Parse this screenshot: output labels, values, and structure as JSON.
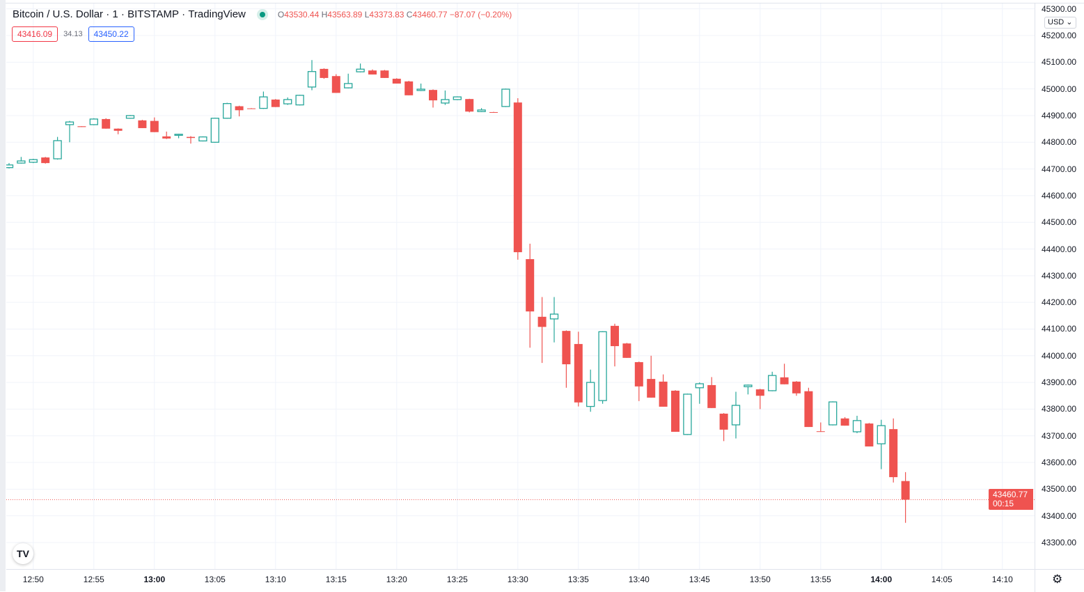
{
  "legend": {
    "symbol": "Bitcoin / U.S. Dollar",
    "interval": "1",
    "exchange": "BITSTAMP",
    "source": "TradingView",
    "o_label": "O",
    "o": "43530.44",
    "h_label": "H",
    "h": "43563.89",
    "l_label": "L",
    "l": "43373.83",
    "c_label": "C",
    "c": "43460.77",
    "change": "−87.07 (−0.20%)"
  },
  "quote": {
    "bid": "43416.09",
    "spread": "34.13",
    "ask": "43450.22"
  },
  "currency": "USD",
  "last_price": {
    "value": "43460.77",
    "countdown": "00:15"
  },
  "colors": {
    "up": "#26a69a",
    "down": "#ef5350",
    "bid": "#f23645",
    "ask": "#2962ff"
  },
  "chart_data": {
    "type": "candlestick",
    "title": "Bitcoin / U.S. Dollar · 1 · BITSTAMP",
    "ylim": [
      43250,
      45300
    ],
    "y_ticks": [
      "45300.00",
      "45200.00",
      "45100.00",
      "45000.00",
      "44900.00",
      "44800.00",
      "44700.00",
      "44600.00",
      "44500.00",
      "44400.00",
      "44300.00",
      "44200.00",
      "44100.00",
      "44000.00",
      "43900.00",
      "43800.00",
      "43700.00",
      "43600.00",
      "43500.00",
      "43400.00",
      "43300.00"
    ],
    "x_ticks": [
      "12:50",
      "12:55",
      "13:00",
      "13:05",
      "13:10",
      "13:15",
      "13:20",
      "13:25",
      "13:30",
      "13:35",
      "13:40",
      "13:45",
      "13:50",
      "13:55",
      "14:00",
      "14:05",
      "14:10"
    ],
    "x_ticks_bold": [
      "13:00",
      "14:00"
    ],
    "grid": true,
    "columns": [
      "time",
      "open",
      "high",
      "low",
      "close"
    ],
    "candles": [
      [
        "12:48",
        44705,
        44722,
        44702,
        44715
      ],
      [
        "12:49",
        44722,
        44745,
        44720,
        44730
      ],
      [
        "12:50",
        44725,
        44738,
        44722,
        44735
      ],
      [
        "12:51",
        44743,
        44745,
        44720,
        44722
      ],
      [
        "12:52",
        44738,
        44820,
        44735,
        44806
      ],
      [
        "12:53",
        44866,
        44880,
        44800,
        44876
      ],
      [
        "12:54",
        44860,
        44860,
        44857,
        44857
      ],
      [
        "12:55",
        44866,
        44890,
        44864,
        44887
      ],
      [
        "12:56",
        44887,
        44890,
        44851,
        44851
      ],
      [
        "12:57",
        44851,
        44852,
        44830,
        44843
      ],
      [
        "12:58",
        44890,
        44902,
        44888,
        44900
      ],
      [
        "12:59",
        44882,
        44884,
        44853,
        44853
      ],
      [
        "13:00",
        44880,
        44893,
        44838,
        44838
      ],
      [
        "13:01",
        44822,
        44840,
        44812,
        44814
      ],
      [
        "13:02",
        44826,
        44832,
        44815,
        44830
      ],
      [
        "13:03",
        44820,
        44823,
        44795,
        44816
      ],
      [
        "13:04",
        44805,
        44822,
        44803,
        44820
      ],
      [
        "13:05",
        44800,
        44892,
        44798,
        44890
      ],
      [
        "13:06",
        44890,
        44948,
        44888,
        44945
      ],
      [
        "13:07",
        44935,
        44937,
        44897,
        44920
      ],
      [
        "13:08",
        44927,
        44928,
        44925,
        44926
      ],
      [
        "13:09",
        44927,
        44990,
        44925,
        44970
      ],
      [
        "13:10",
        44960,
        44962,
        44932,
        44932
      ],
      [
        "13:11",
        44944,
        44968,
        44940,
        44960
      ],
      [
        "13:12",
        44940,
        44978,
        44938,
        44976
      ],
      [
        "13:13",
        45007,
        45108,
        44995,
        45065
      ],
      [
        "13:14",
        45075,
        45077,
        45038,
        45041
      ],
      [
        "13:15",
        45048,
        45055,
        44985,
        44985
      ],
      [
        "13:16",
        45004,
        45057,
        45002,
        45020
      ],
      [
        "13:17",
        45064,
        45095,
        45062,
        45074
      ],
      [
        "13:18",
        45069,
        45073,
        45054,
        45054
      ],
      [
        "13:19",
        45069,
        45071,
        45041,
        45041
      ],
      [
        "13:20",
        45038,
        45040,
        45020,
        45020
      ],
      [
        "13:21",
        45028,
        45030,
        44976,
        44976
      ],
      [
        "13:22",
        44994,
        45020,
        44992,
        44999
      ],
      [
        "13:23",
        44996,
        44998,
        44930,
        44957
      ],
      [
        "13:24",
        44947,
        44994,
        44940,
        44960
      ],
      [
        "13:25",
        44960,
        44972,
        44958,
        44970
      ],
      [
        "13:26",
        44962,
        44963,
        44912,
        44915
      ],
      [
        "13:27",
        44915,
        44928,
        44913,
        44921
      ],
      [
        "13:28",
        44913,
        44914,
        44911,
        44912
      ],
      [
        "13:29",
        44934,
        45001,
        44932,
        44999
      ],
      [
        "13:30",
        44949,
        44965,
        44360,
        44388
      ],
      [
        "13:31",
        44362,
        44420,
        44030,
        44166
      ],
      [
        "13:32",
        44146,
        44220,
        43973,
        44108
      ],
      [
        "13:33",
        44138,
        44220,
        44050,
        44156
      ],
      [
        "13:34",
        44093,
        44095,
        43880,
        43968
      ],
      [
        "13:35",
        44044,
        44090,
        43810,
        43825
      ],
      [
        "13:36",
        43810,
        43948,
        43790,
        43900
      ],
      [
        "13:37",
        43832,
        44092,
        43820,
        44090
      ],
      [
        "13:38",
        44112,
        44120,
        43960,
        44036
      ],
      [
        "13:39",
        44046,
        44048,
        43992,
        43992
      ],
      [
        "13:40",
        43976,
        43978,
        43830,
        43885
      ],
      [
        "13:41",
        43913,
        44000,
        43843,
        43843
      ],
      [
        "13:42",
        43903,
        43930,
        43809,
        43809
      ],
      [
        "13:43",
        43869,
        43871,
        43715,
        43715
      ],
      [
        "13:44",
        43705,
        43858,
        43703,
        43856
      ],
      [
        "13:45",
        43880,
        43900,
        43820,
        43895
      ],
      [
        "13:46",
        43890,
        43920,
        43804,
        43804
      ],
      [
        "13:47",
        43783,
        43785,
        43680,
        43723
      ],
      [
        "13:48",
        43741,
        43865,
        43690,
        43814
      ],
      [
        "13:49",
        43884,
        43892,
        43855,
        43890
      ],
      [
        "13:50",
        43874,
        43876,
        43800,
        43850
      ],
      [
        "13:51",
        43869,
        43940,
        43867,
        43926
      ],
      [
        "13:52",
        43919,
        43970,
        43893,
        43893
      ],
      [
        "13:53",
        43903,
        43905,
        43850,
        43859
      ],
      [
        "13:54",
        43867,
        43880,
        43733,
        43733
      ],
      [
        "13:55",
        43717,
        43750,
        43715,
        43715
      ],
      [
        "13:56",
        43741,
        43829,
        43739,
        43827
      ],
      [
        "13:57",
        43765,
        43770,
        43738,
        43738
      ],
      [
        "13:58",
        43715,
        43775,
        43710,
        43757
      ],
      [
        "13:59",
        43746,
        43748,
        43660,
        43660
      ],
      [
        "14:00",
        43670,
        43760,
        43575,
        43738
      ],
      [
        "14:01",
        43725,
        43765,
        43525,
        43545
      ],
      [
        "14:02",
        43530.44,
        43563.89,
        43373.83,
        43460.77
      ]
    ]
  }
}
